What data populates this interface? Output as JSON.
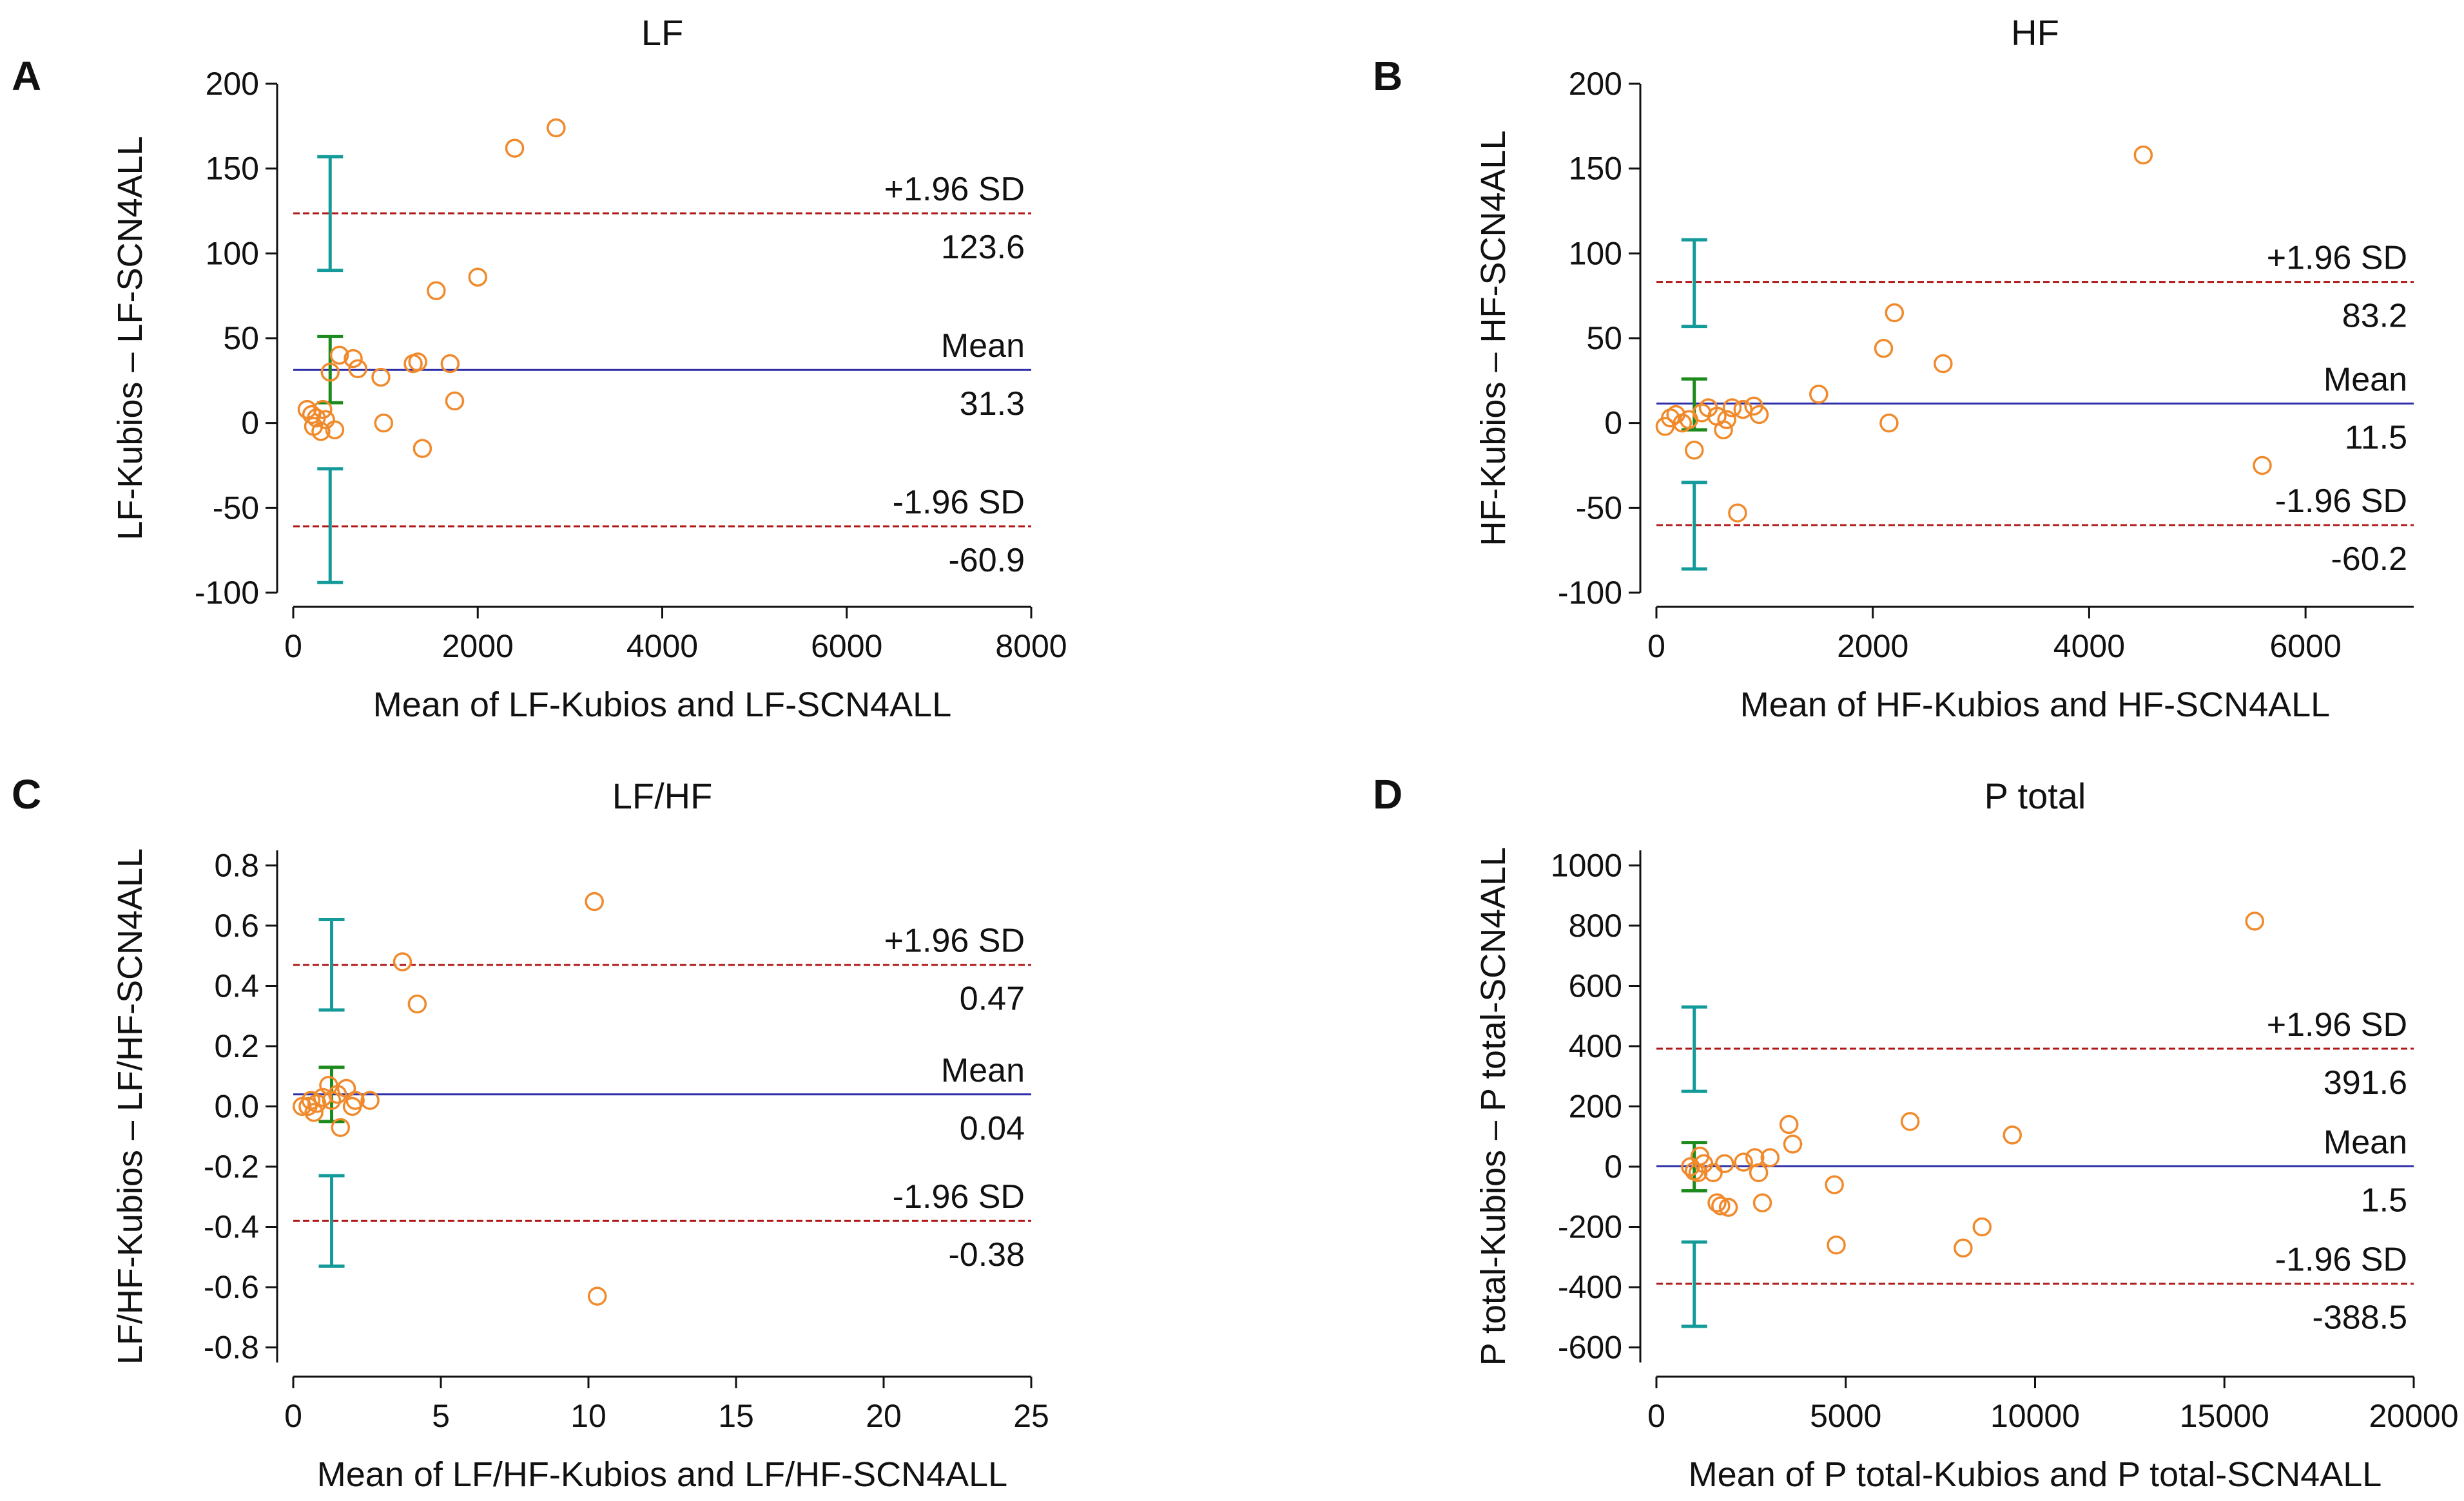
{
  "colors": {
    "axis": "#111111",
    "mean_line": "#2e2fa8",
    "sd_line": "#b01818",
    "points": "#f08a2c",
    "ci_sd": "#159a9a",
    "ci_mean": "#1d8a1d"
  },
  "chart_data": [
    {
      "type": "scatter",
      "panel_letter": "A",
      "title": "LF",
      "xlabel": "Mean of LF-Kubios and LF-SCN4ALL",
      "ylabel": "LF-Kubios  –  LF-SCN4ALL",
      "xlim": [
        0,
        8000
      ],
      "ylim": [
        -100,
        200
      ],
      "xticks": [
        0,
        2000,
        4000,
        6000,
        8000
      ],
      "xtick_labels": [
        "0",
        "2000",
        "4000",
        "6000",
        "8000"
      ],
      "yticks": [
        -100,
        -50,
        0,
        50,
        100,
        150,
        200
      ],
      "ytick_labels": [
        "-100",
        "-50",
        "0",
        "50",
        "100",
        "150",
        "200"
      ],
      "points": [
        [
          150,
          8
        ],
        [
          200,
          5
        ],
        [
          220,
          -2
        ],
        [
          250,
          3
        ],
        [
          300,
          -5
        ],
        [
          320,
          8
        ],
        [
          350,
          2
        ],
        [
          400,
          30
        ],
        [
          450,
          -4
        ],
        [
          500,
          40
        ],
        [
          650,
          38
        ],
        [
          700,
          32
        ],
        [
          950,
          27
        ],
        [
          980,
          0
        ],
        [
          1300,
          35
        ],
        [
          1350,
          36
        ],
        [
          1400,
          -15
        ],
        [
          1550,
          78
        ],
        [
          1700,
          35
        ],
        [
          1750,
          13
        ],
        [
          2000,
          86
        ],
        [
          2400,
          162
        ],
        [
          2850,
          174
        ]
      ],
      "mean": 31.3,
      "upper": 123.6,
      "lower": -60.9,
      "ci_x": 400,
      "ci_upper": [
        90,
        157
      ],
      "ci_mean": [
        12,
        51
      ],
      "ci_lower": [
        -94,
        -27
      ],
      "labels": {
        "upper": "+1.96 SD",
        "upper_value": "123.6",
        "mean": "Mean",
        "mean_value": "31.3",
        "lower": "-1.96 SD",
        "lower_value": "-60.9"
      }
    },
    {
      "type": "scatter",
      "panel_letter": "B",
      "title": "HF",
      "xlabel": "Mean of HF-Kubios and HF-SCN4ALL",
      "ylabel": "HF-Kubios  –  HF-SCN4ALL",
      "xlim": [
        0,
        7000
      ],
      "ylim": [
        -100,
        200
      ],
      "xticks": [
        0,
        2000,
        4000,
        6000
      ],
      "xtick_labels": [
        "0",
        "2000",
        "4000",
        "6000"
      ],
      "yticks": [
        -100,
        -50,
        0,
        50,
        100,
        150,
        200
      ],
      "ytick_labels": [
        "-100",
        "-50",
        "0",
        "50",
        "100",
        "150",
        "200"
      ],
      "points": [
        [
          80,
          -2
        ],
        [
          130,
          3
        ],
        [
          180,
          5
        ],
        [
          240,
          0
        ],
        [
          300,
          2
        ],
        [
          350,
          -16
        ],
        [
          420,
          6
        ],
        [
          480,
          9
        ],
        [
          560,
          4
        ],
        [
          620,
          -4
        ],
        [
          650,
          2
        ],
        [
          700,
          9
        ],
        [
          750,
          -53
        ],
        [
          800,
          8
        ],
        [
          900,
          10
        ],
        [
          950,
          5
        ],
        [
          1500,
          17
        ],
        [
          2100,
          44
        ],
        [
          2150,
          0
        ],
        [
          2200,
          65
        ],
        [
          2650,
          35
        ],
        [
          4500,
          158
        ],
        [
          5600,
          -25
        ]
      ],
      "mean": 11.5,
      "upper": 83.2,
      "lower": -60.2,
      "ci_x": 350,
      "ci_upper": [
        57,
        108
      ],
      "ci_mean": [
        -4,
        26
      ],
      "ci_lower": [
        -86,
        -35
      ],
      "labels": {
        "upper": "+1.96 SD",
        "upper_value": "83.2",
        "mean": "Mean",
        "mean_value": "11.5",
        "lower": "-1.96 SD",
        "lower_value": "-60.2"
      }
    },
    {
      "type": "scatter",
      "panel_letter": "C",
      "title": "LF/HF",
      "xlabel": "Mean of LF/HF-Kubios and LF/HF-SCN4ALL",
      "ylabel": "LF/HF-Kubios  –  LF/HF-SCN4ALL",
      "xlim": [
        0,
        25
      ],
      "ylim": [
        -0.85,
        0.85
      ],
      "xticks": [
        0,
        5,
        10,
        15,
        20,
        25
      ],
      "xtick_labels": [
        "0",
        "5",
        "10",
        "15",
        "20",
        "25"
      ],
      "yticks": [
        -0.8,
        -0.6,
        -0.4,
        -0.2,
        0,
        0.2,
        0.4,
        0.6,
        0.8
      ],
      "ytick_labels": [
        "-0.8",
        "-0.6",
        "-0.4",
        "-0.2",
        "0.0",
        "0.2",
        "0.4",
        "0.6",
        "0.8"
      ],
      "points": [
        [
          0.3,
          0.0
        ],
        [
          0.5,
          0.0
        ],
        [
          0.6,
          0.02
        ],
        [
          0.7,
          -0.02
        ],
        [
          0.8,
          0.01
        ],
        [
          1.0,
          0.03
        ],
        [
          1.2,
          0.07
        ],
        [
          1.3,
          0.02
        ],
        [
          1.5,
          0.04
        ],
        [
          1.6,
          -0.07
        ],
        [
          1.8,
          0.06
        ],
        [
          2.0,
          0.0
        ],
        [
          2.1,
          0.02
        ],
        [
          2.6,
          0.02
        ],
        [
          3.7,
          0.48
        ],
        [
          4.2,
          0.34
        ],
        [
          10.2,
          0.68
        ],
        [
          10.3,
          -0.63
        ]
      ],
      "mean": 0.04,
      "upper": 0.47,
      "lower": -0.38,
      "ci_x": 1.3,
      "ci_upper": [
        0.32,
        0.62
      ],
      "ci_mean": [
        -0.05,
        0.13
      ],
      "ci_lower": [
        -0.53,
        -0.23
      ],
      "labels": {
        "upper": "+1.96 SD",
        "upper_value": "0.47",
        "mean": "Mean",
        "mean_value": "0.04",
        "lower": "-1.96 SD",
        "lower_value": "-0.38"
      }
    },
    {
      "type": "scatter",
      "panel_letter": "D",
      "title": "P total",
      "xlabel": "Mean of P total-Kubios and P total-SCN4ALL",
      "ylabel": "P total-Kubios  –  P total-SCN4ALL",
      "xlim": [
        0,
        20000
      ],
      "ylim": [
        -650,
        1050
      ],
      "xticks": [
        0,
        5000,
        10000,
        15000,
        20000
      ],
      "xtick_labels": [
        "0",
        "5000",
        "10000",
        "15000",
        "20000"
      ],
      "yticks": [
        -600,
        -400,
        -200,
        0,
        200,
        400,
        600,
        800,
        1000
      ],
      "ytick_labels": [
        "-600",
        "-400",
        "-200",
        "0",
        "200",
        "400",
        "600",
        "800",
        "1000"
      ],
      "points": [
        [
          900,
          0
        ],
        [
          1000,
          -15
        ],
        [
          1100,
          -20
        ],
        [
          1150,
          35
        ],
        [
          1250,
          10
        ],
        [
          1500,
          -20
        ],
        [
          1600,
          -120
        ],
        [
          1700,
          -130
        ],
        [
          1800,
          10
        ],
        [
          1900,
          -135
        ],
        [
          2300,
          15
        ],
        [
          2600,
          30
        ],
        [
          2700,
          -20
        ],
        [
          2800,
          -120
        ],
        [
          3000,
          30
        ],
        [
          3500,
          140
        ],
        [
          3600,
          75
        ],
        [
          4700,
          -60
        ],
        [
          4750,
          -260
        ],
        [
          6700,
          150
        ],
        [
          8100,
          -270
        ],
        [
          8600,
          -200
        ],
        [
          9400,
          105
        ],
        [
          15800,
          815
        ]
      ],
      "mean": 1.5,
      "upper": 391.6,
      "lower": -388.5,
      "ci_x": 1000,
      "ci_upper": [
        250,
        530
      ],
      "ci_mean": [
        -80,
        80
      ],
      "ci_lower": [
        -530,
        -250
      ],
      "labels": {
        "upper": "+1.96 SD",
        "upper_value": "391.6",
        "mean": "Mean",
        "mean_value": "1.5",
        "lower": "-1.96 SD",
        "lower_value": "-388.5"
      }
    }
  ]
}
